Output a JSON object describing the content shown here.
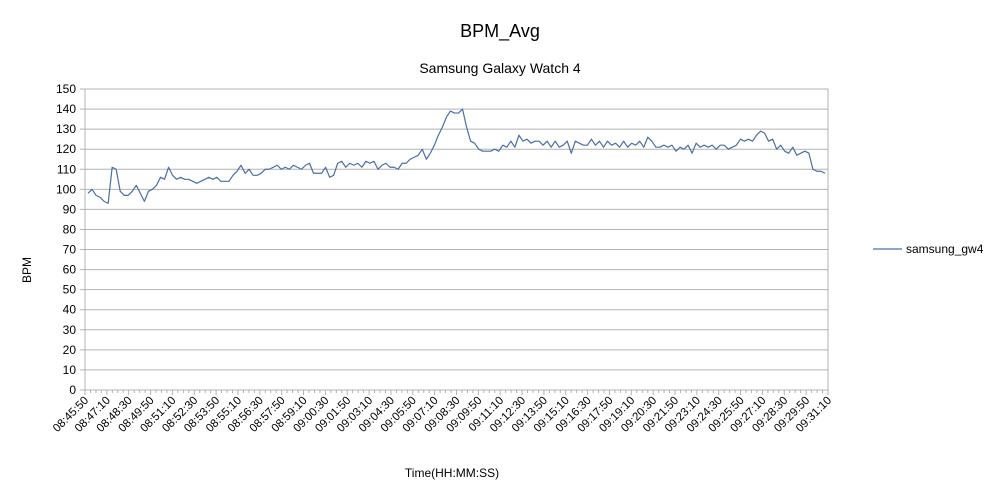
{
  "chart_data": {
    "type": "line",
    "title": "BPM_Avg",
    "subtitle": "Samsung Galaxy Watch 4",
    "xlabel": "Time(HH:MM:SS)",
    "ylabel": "BPM",
    "ylim": [
      0,
      150
    ],
    "y_ticks": [
      0,
      10,
      20,
      30,
      40,
      50,
      60,
      70,
      80,
      90,
      100,
      110,
      120,
      130,
      140,
      150
    ],
    "grid": true,
    "legend_position": "right",
    "x_tick_labels": [
      "08:45:50",
      "08:47:10",
      "08:48:30",
      "08:49:50",
      "08:51:10",
      "08:52:30",
      "08:53:50",
      "08:55:10",
      "08:56:30",
      "08:57:50",
      "08:59:10",
      "09:00:30",
      "09:01:50",
      "09:03:10",
      "09:04:30",
      "09:05:50",
      "09:07:10",
      "09:08:30",
      "09:09:50",
      "09:11:10",
      "09:12:30",
      "09:13:50",
      "09:15:10",
      "09:16:30",
      "09:17:50",
      "09:19:10",
      "09:20:30",
      "09:21:50",
      "09:23:10",
      "09:24:30",
      "09:25:50",
      "09:27:10",
      "09:28:30",
      "09:29:50",
      "09:31:10"
    ],
    "x_step_labels_per_tick": 8,
    "series": [
      {
        "name": "samsung_gw4",
        "color": "#4a6fa5",
        "values": [
          98,
          100,
          97,
          96,
          94,
          93,
          111,
          110,
          99,
          97,
          97,
          99,
          102,
          98,
          94,
          99,
          100,
          102,
          106,
          105,
          111,
          107,
          105,
          106,
          105,
          105,
          104,
          103,
          104,
          105,
          106,
          105,
          106,
          104,
          104,
          104,
          107,
          109,
          112,
          108,
          110,
          107,
          107,
          108,
          110,
          110,
          111,
          112,
          110,
          111,
          110,
          112,
          111,
          110,
          112,
          113,
          108,
          108,
          108,
          111,
          106,
          107,
          113,
          114,
          111,
          113,
          112,
          113,
          111,
          114,
          113,
          114,
          110,
          112,
          113,
          111,
          111,
          110,
          113,
          113,
          115,
          116,
          117,
          120,
          115,
          118,
          122,
          127,
          131,
          136,
          139,
          138,
          138,
          140,
          131,
          124,
          123,
          120,
          119,
          119,
          119,
          120,
          119,
          122,
          121,
          124,
          121,
          127,
          124,
          125,
          123,
          124,
          124,
          122,
          124,
          121,
          124,
          121,
          122,
          124,
          118,
          124,
          123,
          122,
          122,
          125,
          122,
          124,
          121,
          124,
          122,
          123,
          121,
          124,
          121,
          123,
          122,
          124,
          121,
          126,
          124,
          121,
          121,
          122,
          121,
          122,
          119,
          121,
          120,
          122,
          118,
          123,
          121,
          122,
          121,
          122,
          120,
          122,
          122,
          120,
          121,
          122,
          125,
          124,
          125,
          124,
          127,
          129,
          128,
          124,
          125,
          120,
          122,
          119,
          118,
          121,
          117,
          118,
          119,
          118,
          110,
          109,
          109,
          108
        ]
      }
    ]
  }
}
